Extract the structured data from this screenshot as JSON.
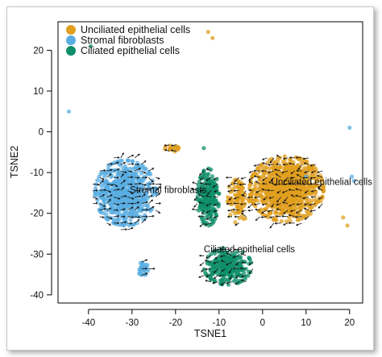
{
  "chart_data": {
    "type": "scatter",
    "xlabel": "TSNE1",
    "ylabel": "TSNE2",
    "xlim": [
      -47,
      23
    ],
    "ylim": [
      -42,
      27
    ],
    "xticks": [
      -40,
      -30,
      -20,
      -10,
      0,
      10,
      20
    ],
    "yticks": [
      -40,
      -30,
      -20,
      -10,
      0,
      10,
      20
    ],
    "legend_position": "top-left",
    "series": [
      {
        "name": "Unciliated epithelial cells",
        "color": "#e09f1f",
        "clusters": [
          {
            "center": [
              5.5,
              -14
            ],
            "spread": [
              8.5,
              8
            ],
            "count": 900
          },
          {
            "center": [
              -5.5,
              -16.5
            ],
            "spread": [
              2.5,
              6
            ],
            "count": 90
          },
          {
            "center": [
              -20.5,
              -4
            ],
            "spread": [
              2,
              1
            ],
            "count": 20
          }
        ],
        "outliers": [
          [
            -12.5,
            24.5
          ],
          [
            -11.5,
            23
          ],
          [
            18.5,
            -21
          ],
          [
            19.5,
            -23
          ]
        ]
      },
      {
        "name": "Stromal fibroblasts",
        "color": "#5aade2",
        "clusters": [
          {
            "center": [
              -31.5,
              -15
            ],
            "spread": [
              7,
              8
            ],
            "count": 650
          },
          {
            "center": [
              -27.5,
              -33.5
            ],
            "spread": [
              1.2,
              1.8
            ],
            "count": 30
          }
        ],
        "outliers": [
          [
            -44.5,
            5
          ],
          [
            20,
            1
          ],
          [
            20.5,
            -11
          ],
          [
            21,
            -12
          ],
          [
            10,
            -11
          ]
        ]
      },
      {
        "name": "Ciliated epithelial cells",
        "color": "#0f8f6a",
        "clusters": [
          {
            "center": [
              -12.5,
              -16
            ],
            "spread": [
              2.5,
              7
            ],
            "count": 240
          },
          {
            "center": [
              -8,
              -33
            ],
            "spread": [
              5.5,
              4.5
            ],
            "count": 260
          }
        ],
        "outliers": [
          [
            -39.5,
            21
          ],
          [
            -13.5,
            -4
          ]
        ]
      }
    ],
    "annotations": [
      {
        "text": "Unciliated epithelial cells",
        "x": 2,
        "y": -13
      },
      {
        "text": "Stromal fibroblasts",
        "x": -30.5,
        "y": -15
      },
      {
        "text": "Ciliated epithelial cells",
        "x": -13.5,
        "y": -29.5
      }
    ],
    "velocity_field": {
      "x_range": [
        -39,
        15
      ],
      "y_range": [
        -40,
        1
      ],
      "step": 1.6,
      "arrow_color": "#111111"
    }
  }
}
